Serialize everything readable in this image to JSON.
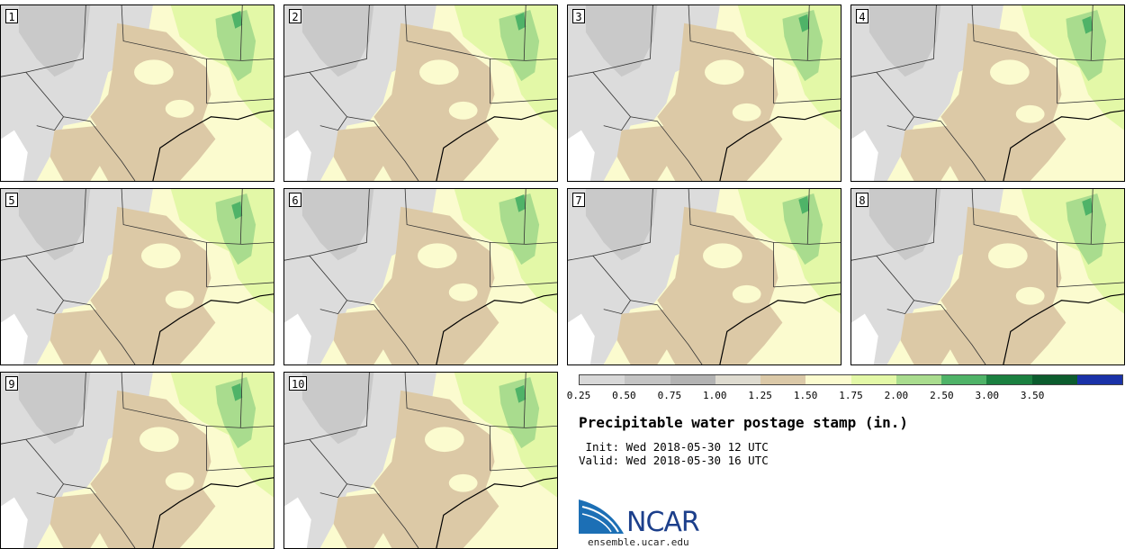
{
  "panels": [
    {
      "label": "1"
    },
    {
      "label": "2"
    },
    {
      "label": "3"
    },
    {
      "label": "4"
    },
    {
      "label": "5"
    },
    {
      "label": "6"
    },
    {
      "label": "7"
    },
    {
      "label": "8"
    },
    {
      "label": "9"
    },
    {
      "label": "10"
    }
  ],
  "colorbar": {
    "ticks": [
      "0.25",
      "0.50",
      "0.75",
      "1.00",
      "1.25",
      "1.50",
      "1.75",
      "2.00",
      "2.50",
      "3.00",
      "3.50"
    ],
    "colors": [
      "#d8d8d8",
      "#c4c4c4",
      "#b3b3b3",
      "#dedbd0",
      "#dbc9a8",
      "#fbfbcf",
      "#e3f8a7",
      "#a9dc8e",
      "#4fb368",
      "#1b8040",
      "#0c5c2e",
      "#1a32a8"
    ]
  },
  "title": "Precipitable water postage stamp (in.)",
  "init_text": " Init: Wed 2018-05-30 12 UTC",
  "valid_text": "Valid: Wed 2018-05-30 16 UTC",
  "logo": {
    "text": "NCAR",
    "url_text": "ensemble.ucar.edu"
  },
  "map_colors": {
    "very_dry": "#ffffff",
    "gray": "#c9c9c9",
    "light_gray": "#dcdcdc",
    "tan": "#dcc9a6",
    "pale_yellow": "#fbfbcf",
    "light_green": "#e3f8a7",
    "mid_green": "#a9dc8e",
    "green": "#4fb368"
  }
}
